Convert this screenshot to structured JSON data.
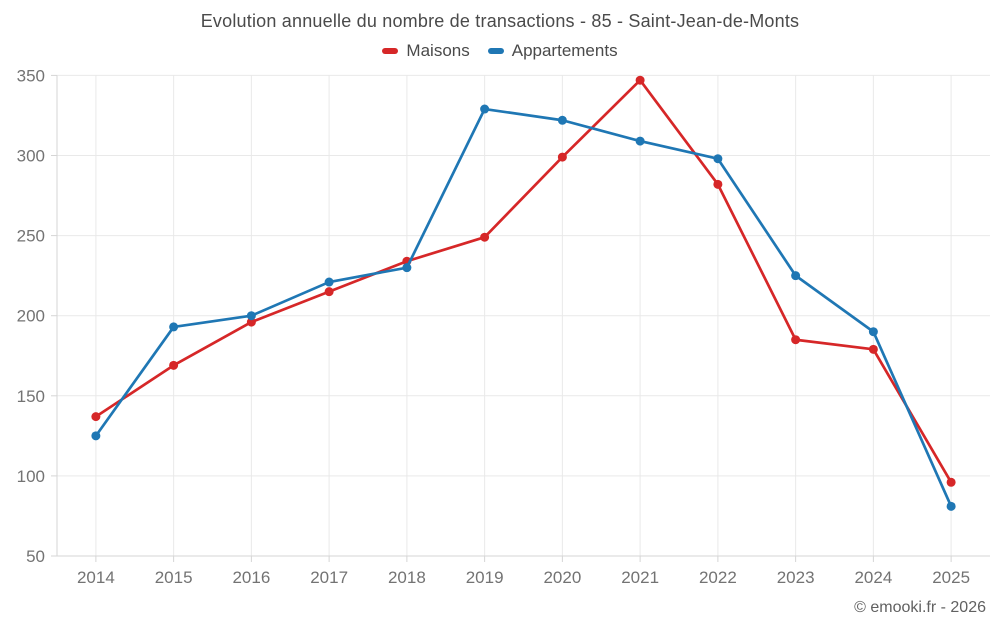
{
  "footer": {
    "copyright": "© emooki.fr - 2026"
  },
  "chart_data": {
    "type": "line",
    "title": "Evolution annuelle du nombre de transactions - 85 - Saint-Jean-de-Monts",
    "categories": [
      "2014",
      "2015",
      "2016",
      "2017",
      "2018",
      "2019",
      "2020",
      "2021",
      "2022",
      "2023",
      "2024",
      "2025"
    ],
    "series": [
      {
        "name": "Maisons",
        "color": "#d62728",
        "values": [
          137,
          169,
          196,
          215,
          234,
          249,
          299,
          347,
          282,
          185,
          179,
          96
        ]
      },
      {
        "name": "Appartements",
        "color": "#1f77b4",
        "values": [
          125,
          193,
          200,
          221,
          230,
          329,
          322,
          309,
          298,
          225,
          190,
          81
        ]
      }
    ],
    "xlabel": "",
    "ylabel": "",
    "ylim": [
      50,
      350
    ],
    "yticks": [
      50,
      100,
      150,
      200,
      250,
      300,
      350
    ],
    "grid": true,
    "legend_position": "top",
    "marker": "circle",
    "colors": {
      "grid": "#e9e9e9",
      "axis": "#d5d5d5",
      "tick_label": "#737373",
      "title_text": "#4a4a4a",
      "footer_text": "#616161",
      "background": "#ffffff"
    }
  }
}
